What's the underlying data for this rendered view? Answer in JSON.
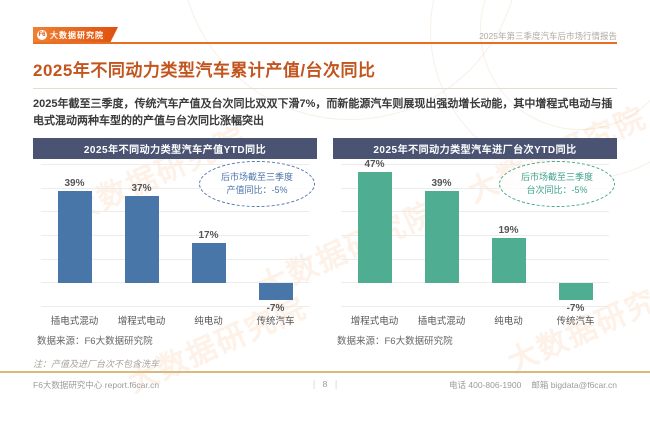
{
  "colors": {
    "brand_orange": "#e0500f",
    "title_orange": "#c2551e",
    "navy_header": "#4a5472",
    "bar_blue": "#4876a8",
    "bar_green": "#4fae92",
    "annotation_blue": "#4e76ac",
    "annotation_green": "#3fa48c",
    "footer_line": "#d8b97e"
  },
  "header": {
    "logo_badge": "F6",
    "logo_text": "大数据研究院",
    "report_title": "2025年第三季度汽车后市场行情报告"
  },
  "page": {
    "title": "2025年不同动力类型汽车累计产值/台次同比",
    "summary": "2025年截至三季度，传统汽车产值及台次同比双双下滑7%，而新能源汽车则展现出强劲增长动能，其中增程式电动与插电式混动两种车型的的产值与台次同比涨幅突出"
  },
  "watermark": {
    "text": "大数据研究院"
  },
  "chart_data": [
    {
      "type": "bar",
      "title": "2025年不同动力类型汽车产值YTD同比",
      "categories": [
        "插电式混动",
        "增程式电动",
        "纯电动",
        "传统汽车"
      ],
      "values": [
        39,
        37,
        17,
        -7
      ],
      "value_labels": [
        "39%",
        "37%",
        "17%",
        "-7%"
      ],
      "bar_color": "#4876a8",
      "accent": "#4e76ac",
      "annotation_line1": "后市场截至三季度",
      "annotation_line2": "产值同比：-5%",
      "source": "数据来源：F6大数据研究院",
      "ylim": [
        -10,
        50
      ],
      "grid": true,
      "legend": "none"
    },
    {
      "type": "bar",
      "title": "2025年不同动力类型汽车进厂台次YTD同比",
      "categories": [
        "增程式电动",
        "插电式混动",
        "纯电动",
        "传统汽车"
      ],
      "values": [
        47,
        39,
        19,
        -7
      ],
      "value_labels": [
        "47%",
        "39%",
        "19%",
        "-7%"
      ],
      "bar_color": "#4fae92",
      "accent": "#3fa48c",
      "annotation_line1": "后市场截至三季度",
      "annotation_line2": "台次同比：-5%",
      "source": "数据来源：F6大数据研究院",
      "ylim": [
        -10,
        50
      ],
      "grid": true,
      "legend": "none"
    }
  ],
  "footnote": "注：产值及进厂台次不包含洗车",
  "footer": {
    "left": "F6大数据研究中心 report.f6car.cn",
    "page_number": "8",
    "phone": "电话 400-806-1900",
    "email": "邮箱 bigdata@f6car.cn"
  }
}
